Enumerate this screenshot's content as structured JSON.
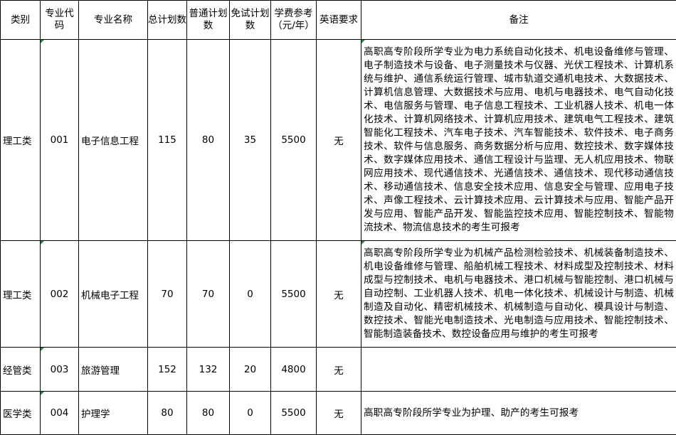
{
  "headers": [
    "类别",
    "专业代码",
    "专业名称",
    "总计划数",
    "普通计划数",
    "免试计划数",
    "学费参考（元/年）",
    "英语要求",
    "备注"
  ],
  "rows": [
    {
      "category": "理工类",
      "code": "001",
      "name": "电子信息工程",
      "total": "115",
      "regular": "80",
      "exempt": "35",
      "tuition": "5500",
      "english": "无",
      "note": "高职高专阶段所学专业为电力系统自动化技术、机电设备维修与管理、电子制造技术与设备、电子测量技术与仪器、光伏工程技术、计算机系统与维护、通信系统运行管理、城市轨道交通机电技术、大数据技术、计算机信息管理、大数据技术与应用、电机与电器技术、电气自动化技术、电信服务与管理、电子信息工程技术、工业机器人技术、机电一体化技术、计算机网络技术、计算机应用技术、建筑电气工程技术、建筑智能化工程技术、汽车电子技术、汽车智能技术、软件技术、电子商务技术、软件与信息服务、商务数据分析与应用、数控技术、数字媒体技术、数字媒体应用技术、通信工程设计与监理、无人机应用技术、物联网应用技术、现代通信技术、光通信技术、通信技术、现代移动通信技术、移动通信技术、信息安全技术应用、信息安全与管理、应用电子技术、声像工程技术、云计算技术应用、云计算技术与应用、智能产品开发与应用、智能产品开发、智能监控技术应用、智能控制技术、智能物流技术、物流信息技术的考生可报考"
    },
    {
      "category": "理工类",
      "code": "002",
      "name": "机械电子工程",
      "total": "70",
      "regular": "70",
      "exempt": "0",
      "tuition": "5500",
      "english": "无",
      "note": "高职高专阶段所学专业为机械产品检测检验技术、机械装备制造技术、机电设备维修与管理、船舶机械工程技术、材料成型及控制技术、材料成型与控制技术、电机与电器技术、港口机械与智能控制、港口机械与自动控制、工业机器人技术、机电一体化技术、机械设计与制造、机械制造及自动化、精密机械技术、机械制造与自动化、模具设计与制造、数控技术、智能光电制造技术、光电制造与应用技术、智能控制技术、智能制造装备技术、数控设备应用与维护的考生可报考"
    },
    {
      "category": "经管类",
      "code": "003",
      "name": "旅游管理",
      "total": "152",
      "regular": "132",
      "exempt": "20",
      "tuition": "4800",
      "english": "无",
      "note": ""
    },
    {
      "category": "医学类",
      "code": "004",
      "name": "护理学",
      "total": "80",
      "regular": "80",
      "exempt": "0",
      "tuition": "5500",
      "english": "无",
      "note": "高职高专阶段所学专业为护理、助产的考生可报考"
    }
  ]
}
